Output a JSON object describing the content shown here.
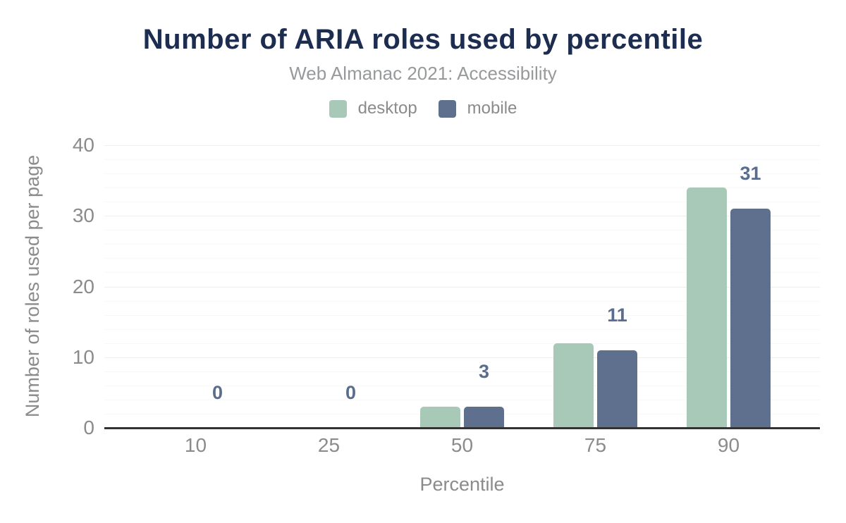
{
  "title": "Number of ARIA roles used by percentile",
  "subtitle": "Web Almanac 2021: Accessibility",
  "colors": {
    "title": "#1c2d50",
    "subtitle": "#97999b",
    "axis_text": "#8b8b8b",
    "axis_line": "#333333",
    "grid_major": "#eeeeee",
    "grid_minor": "#f8f8f8",
    "data_label": "#5b6d8e",
    "desktop": "#a8c9b8",
    "mobile": "#5f708e"
  },
  "legend": {
    "items": [
      {
        "label": "desktop",
        "color": "#a8c9b8"
      },
      {
        "label": "mobile",
        "color": "#5f708e"
      }
    ]
  },
  "chart_data": {
    "type": "bar",
    "title": "Number of ARIA roles used by percentile",
    "subtitle": "Web Almanac 2021: Accessibility",
    "categories": [
      "10",
      "25",
      "50",
      "75",
      "90"
    ],
    "series": [
      {
        "name": "desktop",
        "color": "#a8c9b8",
        "values": [
          0,
          0,
          3,
          12,
          34
        ]
      },
      {
        "name": "mobile",
        "color": "#5f708e",
        "values": [
          0,
          0,
          3,
          11,
          31
        ]
      }
    ],
    "bar_labels": {
      "series": "mobile",
      "values": [
        "0",
        "0",
        "3",
        "11",
        "31"
      ]
    },
    "xlabel": "Percentile",
    "ylabel": "Number of roles used per page",
    "ylim": [
      0,
      40
    ],
    "yticks": [
      0,
      10,
      20,
      30,
      40
    ],
    "grid": {
      "minor_step": 2,
      "major_step": 10,
      "enabled": true
    },
    "legend_position": "top"
  }
}
